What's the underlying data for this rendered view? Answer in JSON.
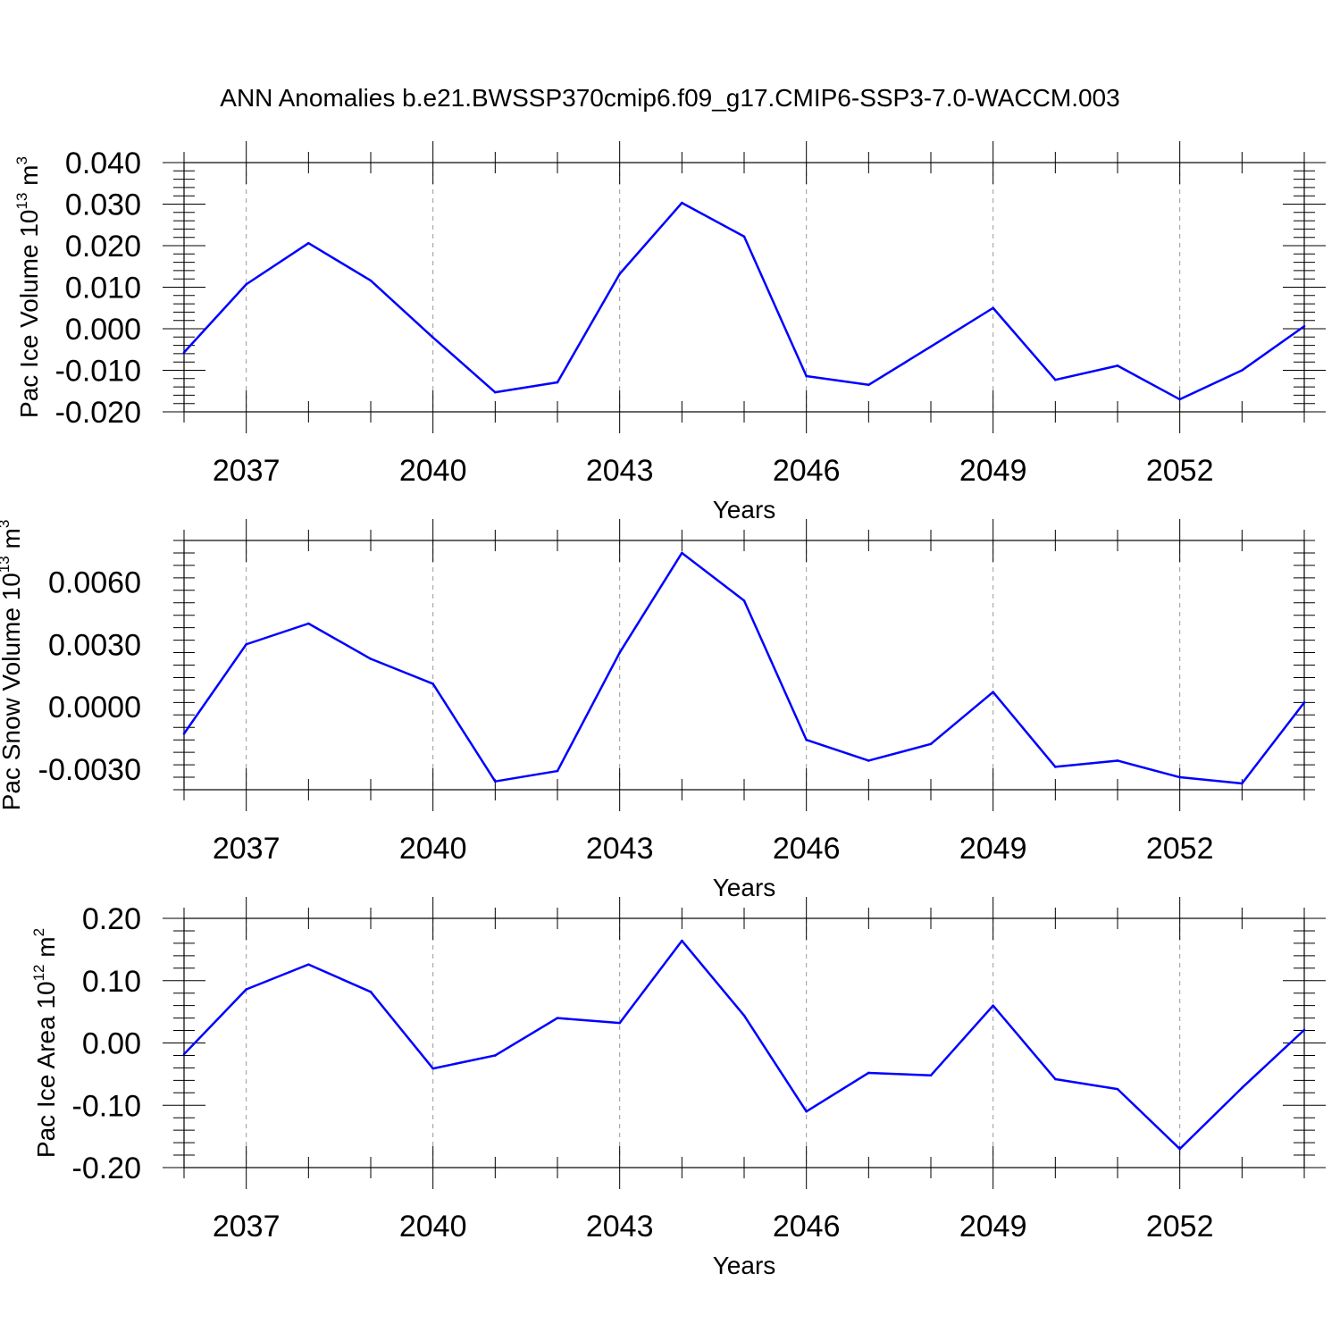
{
  "title": "ANN Anomalies b.e21.BWSSP370cmip6.f09_g17.CMIP6-SSP3-7.0-WACCM.003",
  "colors": {
    "line": "#0000ff",
    "axis": "#000000",
    "grid": "#999999"
  },
  "chart_data": [
    {
      "type": "line",
      "xlabel": "Years",
      "ylabel": {
        "text": "Pac Ice Volume 10",
        "exp": "13",
        "unit": " m",
        "unit_exp": "3"
      },
      "xlim": [
        2036,
        2054
      ],
      "xticks": [
        2037,
        2040,
        2043,
        2046,
        2049,
        2052
      ],
      "ylim": [
        -0.02,
        0.04
      ],
      "yticks": [
        "-0.020",
        "-0.010",
        "0.000",
        "0.010",
        "0.020",
        "0.030",
        "0.040"
      ],
      "grid": "vertical dashed at major x ticks",
      "x": [
        2036,
        2037,
        2038,
        2039,
        2040,
        2041,
        2042,
        2043,
        2044,
        2045,
        2046,
        2047,
        2048,
        2049,
        2050,
        2051,
        2052,
        2053,
        2054
      ],
      "series": [
        {
          "values": [
            -0.0057,
            0.0107,
            0.0206,
            0.0116,
            -0.0021,
            -0.0153,
            -0.0129,
            0.0132,
            0.0303,
            0.0222,
            -0.0114,
            -0.0135,
            -0.0043,
            0.005,
            -0.0123,
            -0.0089,
            -0.017,
            -0.01,
            0.0006
          ]
        }
      ]
    },
    {
      "type": "line",
      "xlabel": "Years",
      "ylabel": {
        "text": "Pac Snow Volume 10",
        "exp": "13",
        "unit": " m",
        "unit_exp": "3"
      },
      "xlim": [
        2036,
        2054
      ],
      "xticks": [
        2037,
        2040,
        2043,
        2046,
        2049,
        2052
      ],
      "ylim": [
        -0.004,
        0.008
      ],
      "yticks": [
        "-0.0030",
        "0.0000",
        "0.0030",
        "0.0060"
      ],
      "grid": "vertical dashed at major x ticks",
      "x": [
        2036,
        2037,
        2038,
        2039,
        2040,
        2041,
        2042,
        2043,
        2044,
        2045,
        2046,
        2047,
        2048,
        2049,
        2050,
        2051,
        2052,
        2053,
        2054
      ],
      "series": [
        {
          "values": [
            -0.0013,
            0.003,
            0.004,
            0.0023,
            0.0011,
            -0.0036,
            -0.0031,
            0.0026,
            0.0074,
            0.0051,
            -0.0016,
            -0.0026,
            -0.0018,
            0.0007,
            -0.0029,
            -0.0026,
            -0.0034,
            -0.0037,
            0.0002
          ]
        }
      ]
    },
    {
      "type": "line",
      "xlabel": "Years",
      "ylabel": {
        "text": "Pac Ice Area 10",
        "exp": "12",
        "unit": " m",
        "unit_exp": "2"
      },
      "xlim": [
        2036,
        2054
      ],
      "xticks": [
        2037,
        2040,
        2043,
        2046,
        2049,
        2052
      ],
      "ylim": [
        -0.2,
        0.2
      ],
      "yticks": [
        "-0.20",
        "-0.10",
        "0.00",
        "0.10",
        "0.20"
      ],
      "grid": "vertical dashed at major x ticks",
      "x": [
        2036,
        2037,
        2038,
        2039,
        2040,
        2041,
        2042,
        2043,
        2044,
        2045,
        2046,
        2047,
        2048,
        2049,
        2050,
        2051,
        2052,
        2053,
        2054
      ],
      "series": [
        {
          "values": [
            -0.018,
            0.086,
            0.126,
            0.082,
            -0.041,
            -0.02,
            0.04,
            0.032,
            0.164,
            0.044,
            -0.11,
            -0.048,
            -0.052,
            0.06,
            -0.058,
            -0.074,
            -0.17,
            -0.072,
            0.021
          ]
        }
      ]
    }
  ]
}
